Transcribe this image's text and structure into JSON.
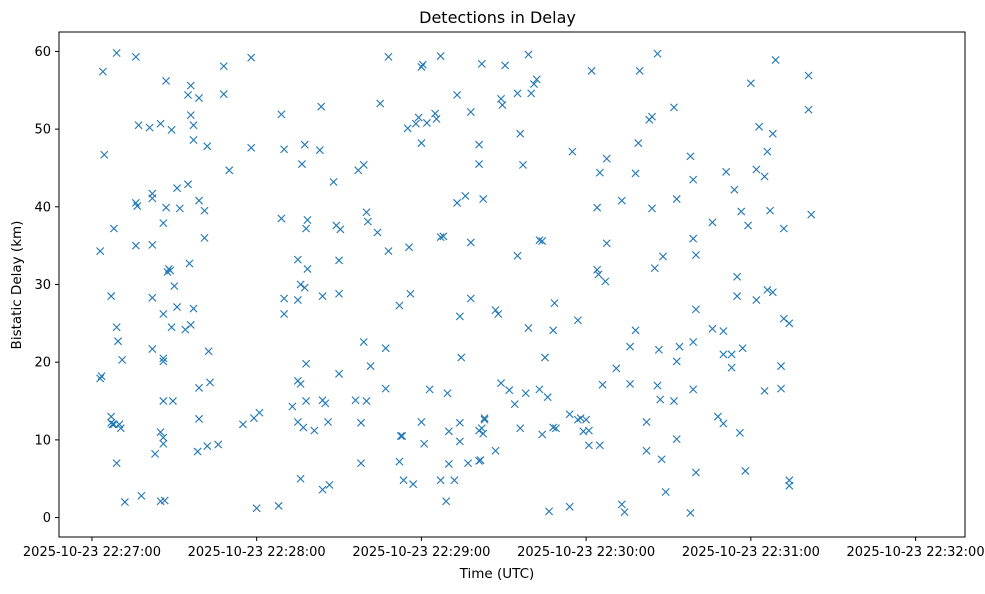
{
  "chart_data": {
    "type": "scatter",
    "title": "Detections in Delay",
    "xlabel": "Time (UTC)",
    "ylabel": "Bistatic Delay (km)",
    "x_start": "2025-10-23 22:26:48",
    "xlim": [
      -12,
      318
    ],
    "ylim": [
      -2.5,
      62.5
    ],
    "xticks": [
      {
        "value": 0,
        "label": "2025-10-23 22:27:00"
      },
      {
        "value": 60,
        "label": "2025-10-23 22:28:00"
      },
      {
        "value": 120,
        "label": "2025-10-23 22:29:00"
      },
      {
        "value": 180,
        "label": "2025-10-23 22:30:00"
      },
      {
        "value": 240,
        "label": "2025-10-23 22:31:00"
      },
      {
        "value": 300,
        "label": "2025-10-23 22:32:00"
      }
    ],
    "yticks": [
      0,
      10,
      20,
      30,
      40,
      50,
      60
    ],
    "marker": "x",
    "color": "#1f77b4",
    "grid": false,
    "points": [
      [
        3,
        34.3
      ],
      [
        3,
        17.9
      ],
      [
        3.5,
        18.2
      ],
      [
        4,
        57.4
      ],
      [
        4.5,
        46.7
      ],
      [
        7,
        13
      ],
      [
        7,
        12.2
      ],
      [
        7,
        28.5
      ],
      [
        7.5,
        12
      ],
      [
        8,
        12
      ],
      [
        8,
        37.2
      ],
      [
        9,
        24.5
      ],
      [
        9,
        7
      ],
      [
        9,
        59.8
      ],
      [
        9.5,
        22.7
      ],
      [
        10,
        12
      ],
      [
        10.5,
        11.5
      ],
      [
        11,
        20.3
      ],
      [
        12,
        2
      ],
      [
        16,
        59.3
      ],
      [
        16,
        40.5
      ],
      [
        16,
        35
      ],
      [
        16.5,
        40.1
      ],
      [
        17,
        50.5
      ],
      [
        18,
        2.8
      ],
      [
        21,
        50.2
      ],
      [
        22,
        21.7
      ],
      [
        22,
        28.3
      ],
      [
        22,
        35.1
      ],
      [
        22,
        41.7
      ],
      [
        22,
        41.1
      ],
      [
        23,
        8.2
      ],
      [
        25,
        2.1
      ],
      [
        25,
        50.7
      ],
      [
        25,
        11
      ],
      [
        26,
        37.9
      ],
      [
        26,
        26.2
      ],
      [
        26,
        20.5
      ],
      [
        26,
        20.1
      ],
      [
        26,
        10.3
      ],
      [
        26,
        9.5
      ],
      [
        26,
        15
      ],
      [
        26.5,
        2.2
      ],
      [
        27,
        56.2
      ],
      [
        27,
        39.9
      ],
      [
        27.5,
        31.6
      ],
      [
        28,
        32
      ],
      [
        28.5,
        31.8
      ],
      [
        29,
        49.9
      ],
      [
        29,
        24.5
      ],
      [
        29.5,
        15
      ],
      [
        30,
        29.8
      ],
      [
        31,
        42.4
      ],
      [
        31,
        27.1
      ],
      [
        32,
        39.8
      ],
      [
        34,
        24.2
      ],
      [
        35,
        54.4
      ],
      [
        35,
        42.9
      ],
      [
        35.5,
        32.7
      ],
      [
        36,
        55.6
      ],
      [
        36,
        51.8
      ],
      [
        36,
        24.8
      ],
      [
        37,
        48.6
      ],
      [
        37,
        50.5
      ],
      [
        37,
        26.9
      ],
      [
        38.5,
        8.5
      ],
      [
        39,
        54
      ],
      [
        39,
        40.8
      ],
      [
        39,
        16.7
      ],
      [
        39,
        12.7
      ],
      [
        41,
        39.5
      ],
      [
        41,
        36
      ],
      [
        42,
        9.2
      ],
      [
        42,
        47.8
      ],
      [
        42.5,
        21.4
      ],
      [
        43,
        17.4
      ],
      [
        46,
        9.4
      ],
      [
        48,
        58.1
      ],
      [
        48,
        54.5
      ],
      [
        50,
        44.7
      ],
      [
        55,
        12
      ],
      [
        58,
        47.6
      ],
      [
        58,
        59.2
      ],
      [
        59,
        12.8
      ],
      [
        60,
        1.2
      ],
      [
        61,
        13.5
      ],
      [
        68,
        1.5
      ],
      [
        69,
        51.9
      ],
      [
        69,
        38.5
      ],
      [
        70,
        26.2
      ],
      [
        70,
        28.2
      ],
      [
        70,
        47.4
      ],
      [
        73,
        14.3
      ],
      [
        75,
        33.2
      ],
      [
        75,
        17.6
      ],
      [
        75,
        28
      ],
      [
        75,
        12.3
      ],
      [
        76,
        30
      ],
      [
        76,
        17.2
      ],
      [
        76,
        5
      ],
      [
        76.5,
        45.5
      ],
      [
        77,
        11.6
      ],
      [
        77.5,
        29.6
      ],
      [
        77.5,
        48
      ],
      [
        78,
        37.2
      ],
      [
        78,
        15
      ],
      [
        78,
        19.8
      ],
      [
        78.5,
        38.3
      ],
      [
        78.5,
        32
      ],
      [
        81,
        11.2
      ],
      [
        83,
        47.3
      ],
      [
        83.5,
        52.9
      ],
      [
        84,
        28.5
      ],
      [
        84,
        15.1
      ],
      [
        84,
        3.6
      ],
      [
        85,
        14.7
      ],
      [
        86,
        12.3
      ],
      [
        86.5,
        4.2
      ],
      [
        88,
        43.2
      ],
      [
        89,
        37.6
      ],
      [
        90,
        28.8
      ],
      [
        90,
        33.1
      ],
      [
        90,
        18.5
      ],
      [
        90.5,
        37.1
      ],
      [
        96,
        15.1
      ],
      [
        97,
        44.7
      ],
      [
        98,
        7
      ],
      [
        98,
        12.2
      ],
      [
        99,
        22.6
      ],
      [
        99,
        45.4
      ],
      [
        100,
        15
      ],
      [
        100,
        39.3
      ],
      [
        100.5,
        38.1
      ],
      [
        101.5,
        19.5
      ],
      [
        104,
        36.7
      ],
      [
        105,
        53.3
      ],
      [
        107,
        21.8
      ],
      [
        107,
        16.6
      ],
      [
        108,
        34.3
      ],
      [
        108,
        59.3
      ],
      [
        112,
        7.2
      ],
      [
        112,
        27.3
      ],
      [
        112.5,
        10.5
      ],
      [
        113,
        10.5
      ],
      [
        113.5,
        4.8
      ],
      [
        115,
        50.1
      ],
      [
        115.5,
        34.8
      ],
      [
        116,
        28.8
      ],
      [
        117,
        4.3
      ],
      [
        118,
        50.7
      ],
      [
        119,
        51.5
      ],
      [
        120,
        48.2
      ],
      [
        120,
        58
      ],
      [
        120,
        12.3
      ],
      [
        120.5,
        58.3
      ],
      [
        121,
        9.5
      ],
      [
        122,
        50.8
      ],
      [
        123,
        16.5
      ],
      [
        125,
        52
      ],
      [
        125.5,
        51.3
      ],
      [
        127,
        59.4
      ],
      [
        127,
        36.1
      ],
      [
        127,
        4.8
      ],
      [
        128,
        36.2
      ],
      [
        129,
        2.1
      ],
      [
        129.5,
        16
      ],
      [
        130,
        11.1
      ],
      [
        130,
        6.9
      ],
      [
        132,
        4.8
      ],
      [
        133,
        54.4
      ],
      [
        133,
        40.5
      ],
      [
        134,
        25.9
      ],
      [
        134,
        9.8
      ],
      [
        134,
        12.2
      ],
      [
        134.5,
        20.6
      ],
      [
        136,
        41.4
      ],
      [
        137,
        7
      ],
      [
        138,
        52.2
      ],
      [
        138,
        28.2
      ],
      [
        138,
        35.4
      ],
      [
        141,
        7.3
      ],
      [
        141,
        48
      ],
      [
        141,
        45.5
      ],
      [
        141,
        11.2
      ],
      [
        141.5,
        7.4
      ],
      [
        142,
        58.4
      ],
      [
        142,
        11.5
      ],
      [
        142.5,
        41
      ],
      [
        142.5,
        10.8
      ],
      [
        143,
        12.8
      ],
      [
        143,
        12.6
      ],
      [
        147,
        26.7
      ],
      [
        147,
        8.6
      ],
      [
        148,
        26.2
      ],
      [
        149,
        53.9
      ],
      [
        149,
        17.3
      ],
      [
        149.5,
        53.1
      ],
      [
        150.5,
        58.2
      ],
      [
        152,
        16.4
      ],
      [
        154,
        14.6
      ],
      [
        155,
        33.7
      ],
      [
        155,
        54.6
      ],
      [
        156,
        49.4
      ],
      [
        156,
        11.5
      ],
      [
        157,
        45.4
      ],
      [
        158,
        16
      ],
      [
        159,
        59.6
      ],
      [
        159,
        24.4
      ],
      [
        160,
        54.6
      ],
      [
        161,
        55.8
      ],
      [
        162,
        56.4
      ],
      [
        163,
        35.7
      ],
      [
        163,
        16.5
      ],
      [
        164,
        35.6
      ],
      [
        164,
        10.7
      ],
      [
        165,
        20.6
      ],
      [
        166,
        15.5
      ],
      [
        166.5,
        0.8
      ],
      [
        168,
        11.6
      ],
      [
        168,
        24.1
      ],
      [
        168.5,
        27.6
      ],
      [
        169,
        11.5
      ],
      [
        174,
        1.4
      ],
      [
        174,
        13.3
      ],
      [
        175,
        47.1
      ],
      [
        177,
        25.4
      ],
      [
        177,
        12.6
      ],
      [
        178,
        12.8
      ],
      [
        179,
        11.1
      ],
      [
        180,
        12.6
      ],
      [
        181,
        9.3
      ],
      [
        181,
        11.2
      ],
      [
        182,
        57.5
      ],
      [
        184,
        39.9
      ],
      [
        184,
        31.9
      ],
      [
        184.5,
        31.3
      ],
      [
        185,
        44.4
      ],
      [
        185,
        9.3
      ],
      [
        186,
        17.1
      ],
      [
        187,
        30.4
      ],
      [
        187.5,
        46.2
      ],
      [
        187.5,
        35.3
      ],
      [
        191,
        19.2
      ],
      [
        193,
        1.7
      ],
      [
        193,
        40.8
      ],
      [
        194,
        0.7
      ],
      [
        196,
        22
      ],
      [
        196,
        17.2
      ],
      [
        198,
        44.3
      ],
      [
        198,
        24.1
      ],
      [
        199,
        48.2
      ],
      [
        199.5,
        57.5
      ],
      [
        202,
        12.3
      ],
      [
        202,
        8.6
      ],
      [
        203,
        51.2
      ],
      [
        204,
        39.8
      ],
      [
        204,
        51.6
      ],
      [
        205,
        32.1
      ],
      [
        206,
        17
      ],
      [
        206,
        59.7
      ],
      [
        206.5,
        21.6
      ],
      [
        207,
        15.2
      ],
      [
        207.5,
        7.5
      ],
      [
        208,
        33.6
      ],
      [
        209,
        3.3
      ],
      [
        212,
        52.8
      ],
      [
        212,
        15
      ],
      [
        213,
        41
      ],
      [
        213,
        20.1
      ],
      [
        213,
        10.1
      ],
      [
        214,
        22
      ],
      [
        218,
        46.5
      ],
      [
        218,
        0.6
      ],
      [
        219,
        35.9
      ],
      [
        219,
        43.5
      ],
      [
        219,
        22.6
      ],
      [
        219,
        16.5
      ],
      [
        220,
        26.8
      ],
      [
        220,
        33.8
      ],
      [
        220,
        5.8
      ],
      [
        226,
        38
      ],
      [
        226,
        24.3
      ],
      [
        228,
        13
      ],
      [
        230,
        24
      ],
      [
        230,
        21
      ],
      [
        230,
        12.1
      ],
      [
        231,
        44.5
      ],
      [
        233,
        21
      ],
      [
        233,
        19.3
      ],
      [
        234,
        42.2
      ],
      [
        235,
        31
      ],
      [
        235,
        28.5
      ],
      [
        236,
        10.9
      ],
      [
        236.5,
        39.4
      ],
      [
        237,
        21.8
      ],
      [
        238,
        6
      ],
      [
        239,
        37.6
      ],
      [
        240,
        55.9
      ],
      [
        242,
        44.8
      ],
      [
        242,
        28
      ],
      [
        243,
        50.3
      ],
      [
        245,
        16.3
      ],
      [
        245,
        43.9
      ],
      [
        246,
        47.1
      ],
      [
        246,
        29.3
      ],
      [
        247,
        39.5
      ],
      [
        248,
        29
      ],
      [
        248,
        49.4
      ],
      [
        249,
        58.9
      ],
      [
        251,
        16.6
      ],
      [
        251,
        19.5
      ],
      [
        252,
        37.2
      ],
      [
        252,
        25.6
      ],
      [
        254,
        4.8
      ],
      [
        254,
        4.1
      ],
      [
        254,
        25
      ],
      [
        261,
        56.9
      ],
      [
        261,
        52.5
      ],
      [
        262,
        39
      ]
    ]
  }
}
